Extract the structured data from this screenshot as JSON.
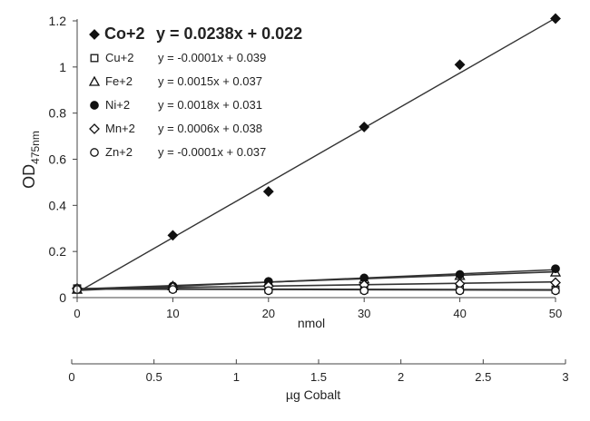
{
  "chart_data": {
    "type": "scatter",
    "xlabel": "nmol",
    "xlabel2": "µg Cobalt",
    "ylabel_main": "OD",
    "ylabel_sub": "475nm",
    "xlim": [
      0,
      50
    ],
    "ylim": [
      0,
      1.2
    ],
    "x2lim": [
      0,
      3
    ],
    "xticks": [
      0,
      10,
      20,
      30,
      40,
      50
    ],
    "yticks": [
      0,
      0.2,
      0.4,
      0.6,
      0.8,
      1,
      1.2
    ],
    "x2ticks": [
      0,
      0.5,
      1,
      1.5,
      2,
      2.5,
      3
    ],
    "x": [
      0,
      10,
      20,
      30,
      40,
      50
    ],
    "series": [
      {
        "name": "Co+2",
        "marker": "diamond-filled",
        "equation": "y = 0.0238x + 0.022",
        "slope": 0.0238,
        "intercept": 0.022,
        "values": [
          0.04,
          0.27,
          0.46,
          0.74,
          1.01,
          1.21
        ]
      },
      {
        "name": "Cu+2",
        "marker": "square-open",
        "equation": "y = -0.0001x + 0.039",
        "slope": -0.0001,
        "intercept": 0.039,
        "values": [
          0.04,
          0.04,
          0.035,
          0.035,
          0.035,
          0.035
        ]
      },
      {
        "name": "Fe+2",
        "marker": "triangle-open",
        "equation": "y = 0.0015x + 0.037",
        "slope": 0.0015,
        "intercept": 0.037,
        "values": [
          0.035,
          0.05,
          0.065,
          0.08,
          0.095,
          0.11
        ]
      },
      {
        "name": "Ni+2",
        "marker": "circle-filled",
        "equation": "y = 0.0018x + 0.031",
        "slope": 0.0018,
        "intercept": 0.031,
        "values": [
          0.035,
          0.05,
          0.07,
          0.085,
          0.1,
          0.125
        ]
      },
      {
        "name": "Mn+2",
        "marker": "diamond-open",
        "equation": "y = 0.0006x + 0.038",
        "slope": 0.0006,
        "intercept": 0.038,
        "values": [
          0.04,
          0.045,
          0.05,
          0.055,
          0.06,
          0.065
        ]
      },
      {
        "name": "Zn+2",
        "marker": "circle-open",
        "equation": "y = -0.0001x + 0.037",
        "slope": -0.0001,
        "intercept": 0.037,
        "values": [
          0.035,
          0.035,
          0.03,
          0.03,
          0.03,
          0.03
        ]
      }
    ],
    "grid": false,
    "legend_position": "top-left"
  }
}
